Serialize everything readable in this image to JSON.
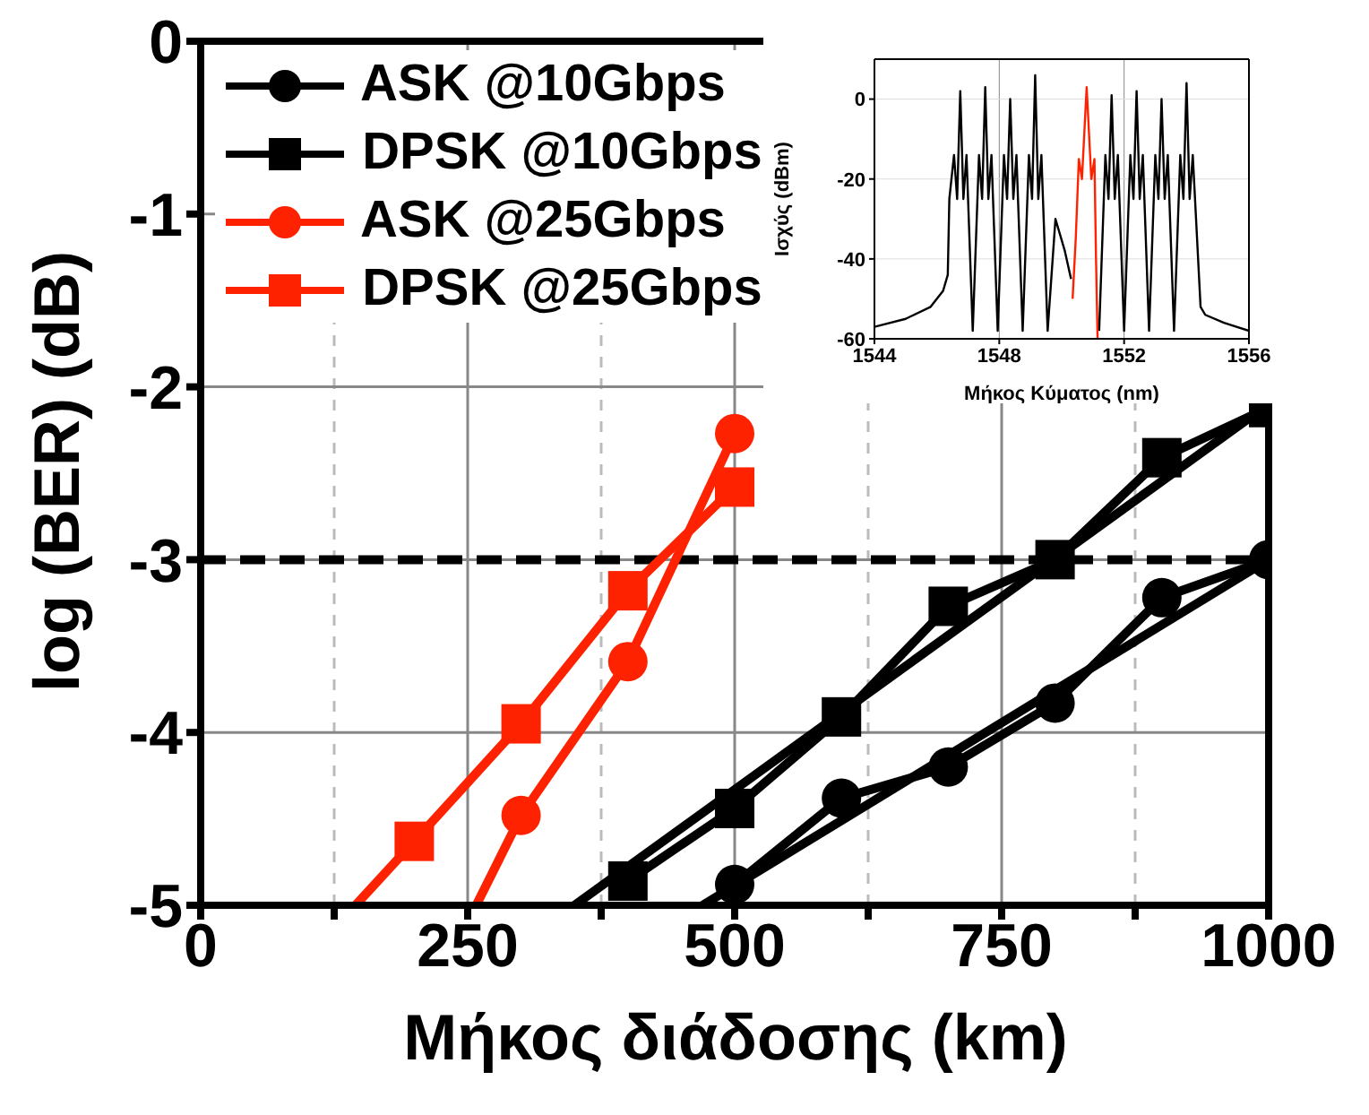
{
  "chart_data": [
    {
      "type": "line",
      "xlabel": "Μήκος διάδοσης (km)",
      "ylabel": "log (BER) (dB)",
      "xlim": [
        0,
        1000
      ],
      "ylim": [
        -5,
        0
      ],
      "xticks": [
        0,
        {
          "value": 125,
          "label": null
        },
        250,
        {
          "value": 375,
          "label": null
        },
        500,
        {
          "value": 625,
          "label": null
        },
        750,
        {
          "value": 875,
          "label": null
        },
        1000
      ],
      "yticks": [
        -5,
        -4,
        -3,
        -2,
        -1,
        0
      ],
      "grid": true,
      "legend": "top left",
      "ref_lines": [
        {
          "axis": "y",
          "value": -3,
          "color": "#000000",
          "line_style": "dashed"
        }
      ],
      "series": [
        {
          "name": "ASK @10Gbps",
          "color": "#000000",
          "marker": "circle",
          "line_style": "solid",
          "x": [
            500,
            600,
            700,
            800,
            900,
            1000
          ],
          "values": [
            -4.88,
            -4.38,
            -4.2,
            -3.83,
            -3.22,
            -3.0
          ]
        },
        {
          "name": "DPSK @10Gbps",
          "color": "#000000",
          "marker": "square",
          "line_style": "solid",
          "x": [
            400,
            500,
            600,
            700,
            800,
            900,
            1000
          ],
          "values": [
            -4.86,
            -4.44,
            -3.91,
            -3.27,
            -3.0,
            -2.41,
            -2.12
          ]
        },
        {
          "name": "ASK @25Gbps",
          "color": "#ff2200",
          "marker": "circle",
          "line_style": "solid",
          "x": [
            300,
            400,
            500
          ],
          "values": [
            -4.48,
            -3.59,
            -2.27
          ]
        },
        {
          "name": "DPSK @25Gbps",
          "color": "#ff2200",
          "marker": "square",
          "line_style": "solid",
          "x": [
            200,
            300,
            400,
            500
          ],
          "values": [
            -4.63,
            -3.95,
            -3.18,
            -2.58
          ]
        },
        {
          "type": "line",
          "color": "#000000",
          "marker": "none",
          "x": [
            470,
            1000
          ],
          "values": [
            -5,
            -3.0
          ]
        },
        {
          "type": "line",
          "color": "#000000",
          "marker": "none",
          "x": [
            350,
            1000
          ],
          "values": [
            -5,
            -2.1
          ]
        },
        {
          "type": "line",
          "color": "#ff2200",
          "marker": "none",
          "x": [
            258,
            300
          ],
          "values": [
            -5,
            -4.48
          ]
        },
        {
          "type": "line",
          "color": "#ff2200",
          "marker": "none",
          "x": [
            145,
            200
          ],
          "values": [
            -5,
            -4.63
          ]
        }
      ]
    },
    {
      "type": "line",
      "xlabel": "Μήκος Κύματος (nm)",
      "ylabel": "Ισχύς (dBm)",
      "xlim": [
        1544,
        1556
      ],
      "ylim": [
        -60,
        10
      ],
      "xticks": [
        1544,
        1548,
        1552,
        1556
      ],
      "yticks": [
        -60,
        -40,
        -20,
        0
      ],
      "grid": true,
      "series": [
        {
          "color": "#000000",
          "marker": "none",
          "x": [
            1544,
            1545,
            1545.8,
            1546.2,
            1546.35,
            1546.4,
            1546.55,
            1546.65,
            1546.75,
            1546.85,
            1546.95,
            1547.15,
            1547.35,
            1547.45,
            1547.55,
            1547.65,
            1547.75,
            1547.95,
            1548.15,
            1548.25,
            1548.35,
            1548.45,
            1548.55,
            1548.75,
            1548.95,
            1549.05,
            1549.15,
            1549.25,
            1549.35,
            1549.55,
            1549.8,
            1550.1,
            1550.3,
            1550.8,
            1551.2,
            1551.4,
            1551.5,
            1551.6,
            1551.7,
            1551.8,
            1552.0,
            1552.2,
            1552.3,
            1552.4,
            1552.5,
            1552.6,
            1552.8,
            1553.0,
            1553.1,
            1553.2,
            1553.3,
            1553.4,
            1553.6,
            1553.8,
            1553.9,
            1554.0,
            1554.1,
            1554.2,
            1554.45,
            1554.6,
            1555.2,
            1556
          ],
          "values": [
            -57,
            -55,
            -52,
            -48,
            -44,
            -25,
            -14,
            -25,
            2,
            -25,
            -14,
            -58,
            -14,
            -25,
            3,
            -25,
            -14,
            -58,
            -14,
            -25,
            0,
            -25,
            -14,
            -58,
            -14,
            -25,
            6,
            -25,
            -14,
            -58,
            -30,
            -38,
            -45,
            null,
            -58,
            -14,
            -25,
            1,
            -25,
            -14,
            -58,
            -14,
            -25,
            2,
            -25,
            -14,
            -58,
            -14,
            -25,
            0,
            -25,
            -14,
            -58,
            -14,
            -25,
            4,
            -25,
            -14,
            -52,
            -54,
            -56,
            -58
          ]
        },
        {
          "color": "#ff2200",
          "marker": "none",
          "x": [
            1550.35,
            1550.45,
            1550.55,
            1550.65,
            1550.8,
            1550.95,
            1551.05,
            1551.1,
            1551.15
          ],
          "values": [
            -50,
            -35,
            -15,
            -20,
            3,
            -20,
            -15,
            -40,
            -60
          ]
        }
      ]
    }
  ]
}
